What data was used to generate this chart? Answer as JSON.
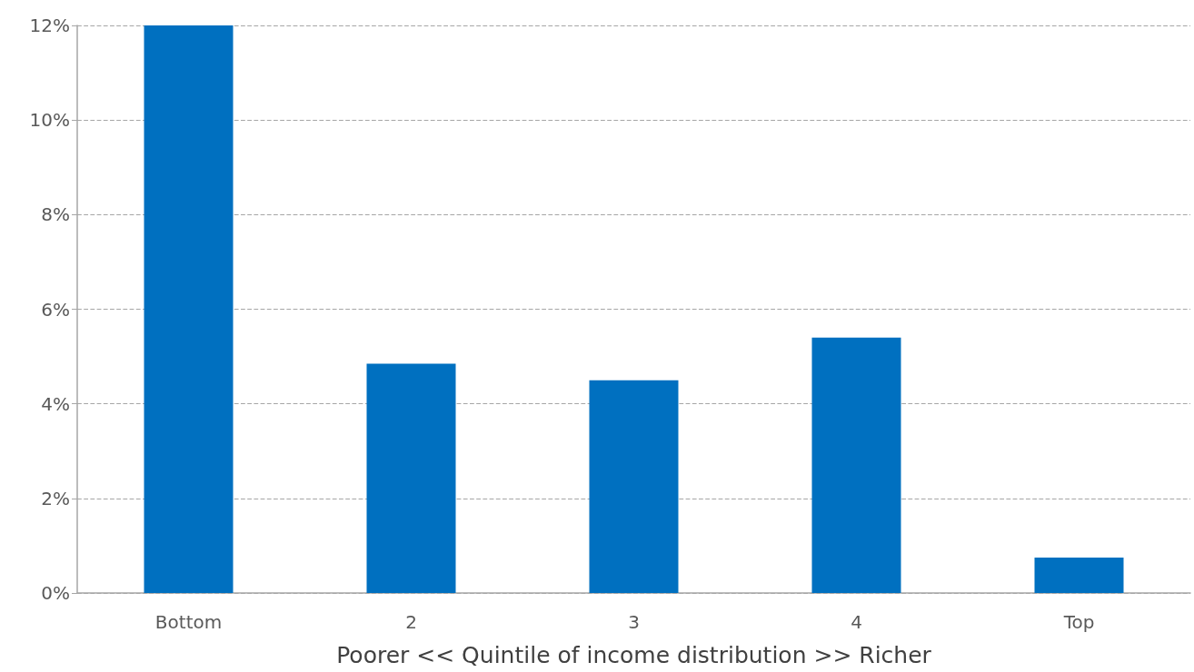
{
  "chart_data": {
    "type": "bar",
    "xlabel": "Poorer << Quintile of income distribution >> Richer",
    "categories": [
      "Bottom",
      "2",
      "3",
      "4",
      "Top"
    ],
    "values": [
      12,
      4.85,
      4.5,
      5.4,
      0.75
    ],
    "color": "#0070c0",
    "ylim": [
      0,
      12
    ],
    "yticks": [
      {
        "value": 0,
        "label": "0%"
      },
      {
        "value": 2,
        "label": "2%"
      },
      {
        "value": 4,
        "label": "4%"
      },
      {
        "value": 6,
        "label": "6%"
      },
      {
        "value": 8,
        "label": "8%"
      },
      {
        "value": 10,
        "label": "10%"
      },
      {
        "value": 12,
        "label": "12%"
      }
    ],
    "grid": "y"
  }
}
